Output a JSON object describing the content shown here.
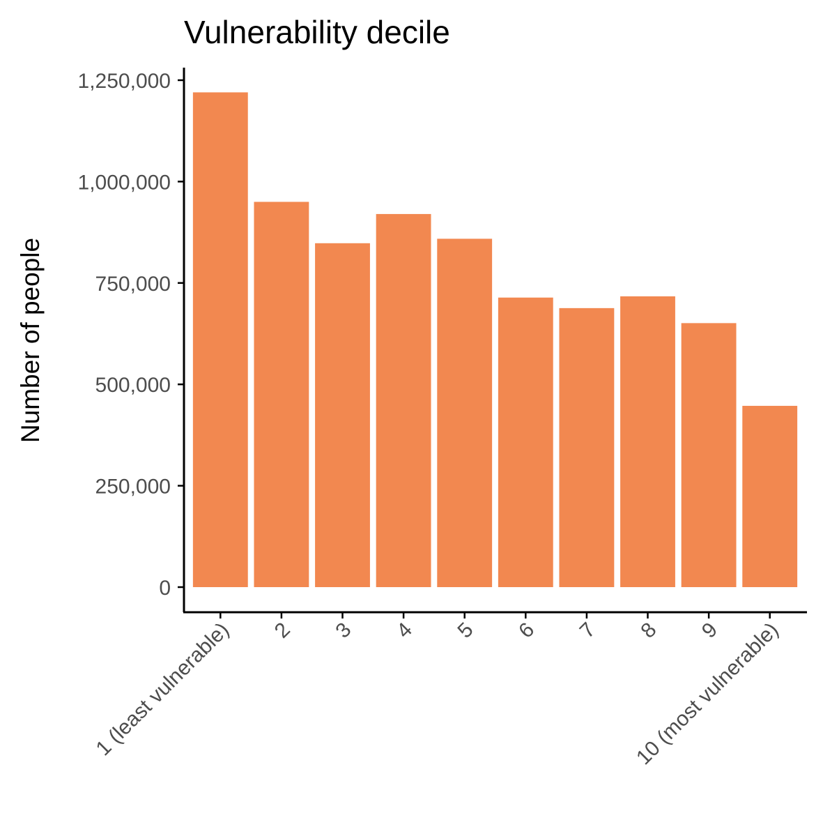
{
  "chart_data": {
    "type": "bar",
    "title": "Vulnerability decile",
    "xlabel": "",
    "ylabel": "Number of people",
    "categories": [
      "1 (least vulnerable)",
      "2",
      "3",
      "4",
      "5",
      "6",
      "7",
      "8",
      "9",
      "10 (most vulnerable)"
    ],
    "values": [
      1220000,
      950000,
      848000,
      920000,
      859000,
      714000,
      688000,
      717000,
      651000,
      447000
    ],
    "ylim": [
      0,
      1250000
    ],
    "yticks": [
      0,
      250000,
      500000,
      750000,
      1000000,
      1250000
    ],
    "ytick_labels": [
      "0",
      "250,000",
      "500,000",
      "750,000",
      "1,000,000",
      "1,250,000"
    ],
    "bar_color": "#F28850",
    "axis_color": "#000000",
    "tick_label_color": "#4D4D4D",
    "grid": false,
    "legend": "none"
  }
}
